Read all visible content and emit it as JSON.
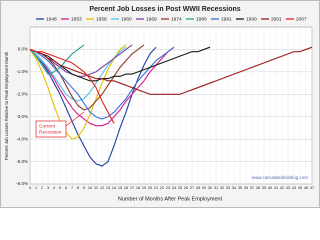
{
  "chart_data": {
    "type": "line",
    "title": "Percent Job Losses in Post WWII Recessions",
    "x_label": "Number of Months After Peak Employment",
    "y_label": "Percent Job Losses Relative to Peak Employment Month",
    "annotation": [
      "Current",
      "Recession"
    ],
    "watermark": "www.calculatedriskblog.com",
    "grid": true,
    "x": [
      0,
      1,
      2,
      3,
      4,
      5,
      6,
      7,
      8,
      9,
      10,
      11,
      12,
      13,
      14,
      15,
      16,
      17,
      18,
      19,
      20,
      21,
      22,
      23,
      24,
      25,
      26,
      27,
      28,
      29,
      30,
      31,
      32,
      33,
      34,
      35,
      36,
      37,
      38,
      39,
      40,
      41,
      42,
      43,
      44,
      45,
      46,
      47
    ],
    "xlim": [
      0,
      47
    ],
    "ylim": [
      -6,
      1
    ],
    "yticks": [
      {
        "value": -6,
        "label": "-6.0%"
      },
      {
        "value": -5,
        "label": "-5.0%"
      },
      {
        "value": -4,
        "label": "-4.0%"
      },
      {
        "value": -3,
        "label": "-3.0%"
      },
      {
        "value": -2,
        "label": "-2.0%"
      },
      {
        "value": -1,
        "label": "-1.0%"
      },
      {
        "value": 0,
        "label": "0.0%"
      }
    ],
    "series": [
      {
        "name": "1948",
        "color": "#1f3f9f",
        "values": [
          0,
          -0.3,
          -0.6,
          -1.0,
          -1.5,
          -2.0,
          -2.6,
          -3.2,
          -3.8,
          -4.3,
          -4.8,
          -5.1,
          -5.2,
          -5.0,
          -4.3,
          -3.5,
          -2.8,
          -2.0,
          -1.3,
          -0.7,
          -0.2,
          0.1,
          null,
          null,
          null,
          null,
          null,
          null,
          null,
          null,
          null,
          null,
          null,
          null,
          null,
          null,
          null,
          null,
          null,
          null,
          null,
          null,
          null,
          null,
          null,
          null,
          null,
          null
        ]
      },
      {
        "name": "1953",
        "color": "#d81b8c",
        "values": [
          0,
          -0.2,
          -0.5,
          -0.9,
          -1.3,
          -1.8,
          -2.2,
          -2.6,
          -2.9,
          -3.1,
          -3.3,
          -3.4,
          -3.4,
          -3.3,
          -3.0,
          -2.7,
          -2.3,
          -2.0,
          -1.7,
          -1.4,
          -1.0,
          -0.7,
          -0.4,
          -0.1,
          0.1,
          null,
          null,
          null,
          null,
          null,
          null,
          null,
          null,
          null,
          null,
          null,
          null,
          null,
          null,
          null,
          null,
          null,
          null,
          null,
          null,
          null,
          null,
          null
        ]
      },
      {
        "name": "1958",
        "color": "#e8c000",
        "values": [
          0,
          -0.4,
          -1.0,
          -1.7,
          -2.5,
          -3.2,
          -3.7,
          -4.0,
          -3.9,
          -3.5,
          -2.9,
          -2.2,
          -1.5,
          -0.9,
          -0.4,
          0.0,
          0.2,
          null,
          null,
          null,
          null,
          null,
          null,
          null,
          null,
          null,
          null,
          null,
          null,
          null,
          null,
          null,
          null,
          null,
          null,
          null,
          null,
          null,
          null,
          null,
          null,
          null,
          null,
          null,
          null,
          null,
          null,
          null
        ]
      },
      {
        "name": "1960",
        "color": "#4fc8e8",
        "values": [
          0,
          -0.2,
          -0.5,
          -0.8,
          -1.2,
          -1.6,
          -2.0,
          -2.2,
          -2.3,
          -2.2,
          -1.9,
          -1.5,
          -1.1,
          -0.7,
          -0.4,
          -0.1,
          0.1,
          null,
          null,
          null,
          null,
          null,
          null,
          null,
          null,
          null,
          null,
          null,
          null,
          null,
          null,
          null,
          null,
          null,
          null,
          null,
          null,
          null,
          null,
          null,
          null,
          null,
          null,
          null,
          null,
          null,
          null,
          null
        ]
      },
      {
        "name": "1969",
        "color": "#7b3fa0",
        "values": [
          0,
          -0.1,
          -0.2,
          -0.4,
          -0.6,
          -0.8,
          -1.0,
          -1.1,
          -1.2,
          -1.2,
          -1.1,
          -1.0,
          -0.8,
          -0.6,
          -0.4,
          -0.2,
          0.0,
          0.2,
          null,
          null,
          null,
          null,
          null,
          null,
          null,
          null,
          null,
          null,
          null,
          null,
          null,
          null,
          null,
          null,
          null,
          null,
          null,
          null,
          null,
          null,
          null,
          null,
          null,
          null,
          null,
          null,
          null,
          null
        ]
      },
      {
        "name": "1974",
        "color": "#8b3a2a",
        "values": [
          0,
          -0.1,
          -0.2,
          -0.4,
          -0.7,
          -1.1,
          -1.6,
          -2.1,
          -2.5,
          -2.7,
          -2.6,
          -2.3,
          -2.0,
          -1.6,
          -1.2,
          -0.8,
          -0.5,
          -0.2,
          0.0,
          0.2,
          null,
          null,
          null,
          null,
          null,
          null,
          null,
          null,
          null,
          null,
          null,
          null,
          null,
          null,
          null,
          null,
          null,
          null,
          null,
          null,
          null,
          null,
          null,
          null,
          null,
          null,
          null,
          null
        ]
      },
      {
        "name": "1980",
        "color": "#2a9d8f",
        "values": [
          0,
          -0.3,
          -0.7,
          -1.1,
          -1.0,
          -0.8,
          -0.5,
          -0.2,
          0.0,
          0.2,
          null,
          null,
          null,
          null,
          null,
          null,
          null,
          null,
          null,
          null,
          null,
          null,
          null,
          null,
          null,
          null,
          null,
          null,
          null,
          null,
          null,
          null,
          null,
          null,
          null,
          null,
          null,
          null,
          null,
          null,
          null,
          null,
          null,
          null,
          null,
          null,
          null,
          null
        ]
      },
      {
        "name": "1981",
        "color": "#3a6fd8",
        "values": [
          0,
          -0.1,
          -0.3,
          -0.5,
          -0.8,
          -1.1,
          -1.4,
          -1.7,
          -2.0,
          -2.4,
          -2.8,
          -3.0,
          -3.1,
          -3.0,
          -2.8,
          -2.5,
          -2.2,
          -1.8,
          -1.4,
          -1.1,
          -0.8,
          -0.5,
          -0.3,
          -0.1,
          0.1,
          null,
          null,
          null,
          null,
          null,
          null,
          null,
          null,
          null,
          null,
          null,
          null,
          null,
          null,
          null,
          null,
          null,
          null,
          null,
          null,
          null,
          null,
          null
        ]
      },
      {
        "name": "1990",
        "color": "#1a1a1a",
        "values": [
          0,
          -0.1,
          -0.2,
          -0.3,
          -0.5,
          -0.7,
          -0.9,
          -1.1,
          -1.2,
          -1.3,
          -1.4,
          -1.4,
          -1.3,
          -1.3,
          -1.2,
          -1.2,
          -1.1,
          -1.1,
          -1.0,
          -0.9,
          -0.8,
          -0.7,
          -0.6,
          -0.5,
          -0.4,
          -0.3,
          -0.2,
          -0.1,
          -0.1,
          0.0,
          0.1,
          null,
          null,
          null,
          null,
          null,
          null,
          null,
          null,
          null,
          null,
          null,
          null,
          null,
          null,
          null,
          null,
          null
        ]
      },
      {
        "name": "2001",
        "color": "#9a1c1c",
        "values": [
          0,
          -0.1,
          -0.2,
          -0.4,
          -0.5,
          -0.7,
          -0.8,
          -0.9,
          -1.0,
          -1.1,
          -1.2,
          -1.3,
          -1.3,
          -1.4,
          -1.4,
          -1.5,
          -1.6,
          -1.7,
          -1.8,
          -1.9,
          -2.0,
          -2.0,
          -2.0,
          -2.0,
          -2.0,
          -2.0,
          -1.9,
          -1.8,
          -1.7,
          -1.6,
          -1.5,
          -1.4,
          -1.3,
          -1.2,
          -1.1,
          -1.0,
          -0.9,
          -0.8,
          -0.7,
          -0.6,
          -0.5,
          -0.4,
          -0.3,
          -0.2,
          -0.1,
          -0.1,
          0.0,
          0.1
        ]
      },
      {
        "name": "2007",
        "color": "#e82020",
        "values": [
          0,
          -0.1,
          -0.1,
          -0.2,
          -0.3,
          -0.4,
          -0.5,
          -0.6,
          -0.8,
          -1.0,
          -1.3,
          -1.7,
          -2.3,
          -2.8,
          -3.3,
          null,
          null,
          null,
          null,
          null,
          null,
          null,
          null,
          null,
          null,
          null,
          null,
          null,
          null,
          null,
          null,
          null,
          null,
          null,
          null,
          null,
          null,
          null,
          null,
          null,
          null,
          null,
          null,
          null,
          null,
          null,
          null,
          null
        ]
      }
    ]
  }
}
